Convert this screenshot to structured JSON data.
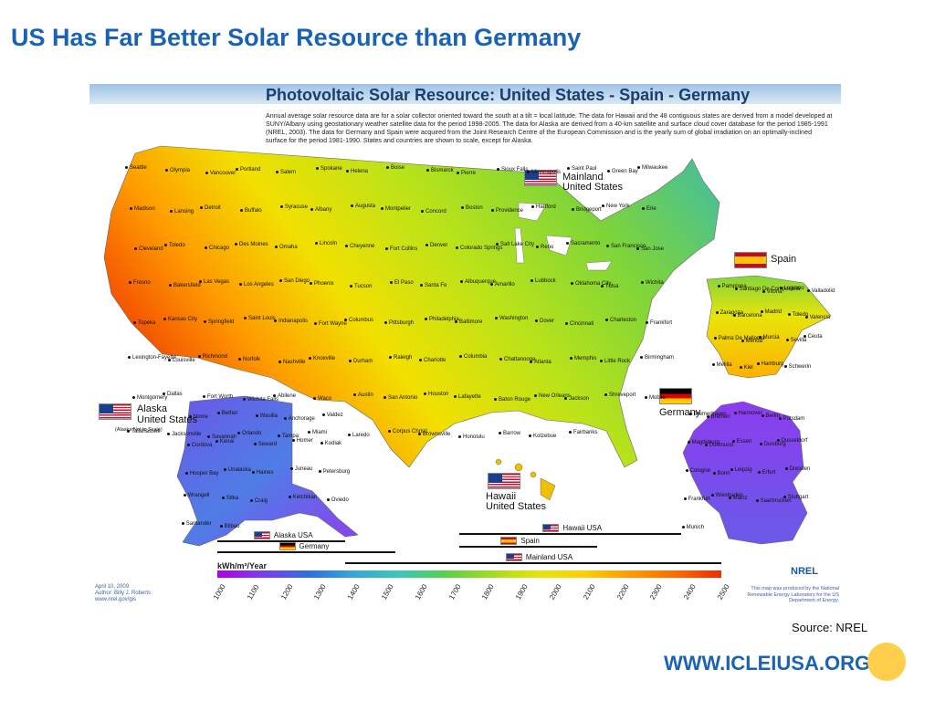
{
  "slide": {
    "title": "US Has Far Better Solar Resource than Germany",
    "source": "Source: NREL",
    "website": "WWW.ICLEIUSA.ORG"
  },
  "map": {
    "title": "Photovoltaic Solar Resource: United States - Spain - Germany",
    "description": "Annual average solar resource data are for a solar collector oriented toward the south at a tilt = local latitude. The data for Hawaii and the 48 contiguous states are derived from a model developed at SUNY/Albany using geostationary weather satellite data for the period 1998-2005. The data for Alaska are derived from a 40-km satellite and surface cloud cover database for the period 1985-1991 (NREL, 2003). The data for Germany and Spain were acquired from the Joint Research Centre of the European Commission and is the yearly sum of global irradiation on an optimally-inclined surface for the period 1981-1990. States and countries are shown to scale, except for Alaska.",
    "regions": {
      "mainland_line1": "Mainland",
      "mainland_line2": "United States",
      "alaska_line1": "Alaska",
      "alaska_line2": "United States",
      "alaska_note": "(Alaska Not to Scale)",
      "hawaii_line1": "Hawaii",
      "hawaii_line2": "United States",
      "spain": "Spain",
      "germany": "Germany"
    },
    "cities": [
      "Seattle",
      "Olympia",
      "Vancouver",
      "Portland",
      "Salem",
      "Spokane",
      "Helena",
      "Boise",
      "Bismarck",
      "Pierre",
      "Sioux Falls",
      "Minneapolis",
      "Saint Paul",
      "Green Bay",
      "Milwaukee",
      "Madison",
      "Lansing",
      "Detroit",
      "Buffalo",
      "Syracuse",
      "Albany",
      "Augusta",
      "Montpelier",
      "Concord",
      "Boston",
      "Providence",
      "Hartford",
      "Bridgeport",
      "New York",
      "Erie",
      "Cleveland",
      "Toledo",
      "Chicago",
      "Des Moines",
      "Omaha",
      "Lincoln",
      "Cheyenne",
      "Fort Collins",
      "Denver",
      "Colorado Springs",
      "Salt Lake City",
      "Reno",
      "Sacramento",
      "San Francisco",
      "San Jose",
      "Fresno",
      "Bakersfield",
      "Las Vegas",
      "Los Angeles",
      "San Diego",
      "Phoenix",
      "Tucson",
      "El Paso",
      "Santa Fe",
      "Albuquerque",
      "Amarillo",
      "Lubbock",
      "Oklahoma City",
      "Tulsa",
      "Wichita",
      "Topeka",
      "Kansas City",
      "Springfield",
      "Saint Louis",
      "Indianapolis",
      "Fort Wayne",
      "Columbus",
      "Pittsburgh",
      "Philadelphia",
      "Baltimore",
      "Washington",
      "Dover",
      "Cincinnati",
      "Charleston",
      "Frankfort",
      "Lexington-Fayette",
      "Louisville",
      "Richmond",
      "Norfolk",
      "Nashville",
      "Knoxville",
      "Durham",
      "Raleigh",
      "Charlotte",
      "Columbia",
      "Chattanooga",
      "Atlanta",
      "Memphis",
      "Little Rock",
      "Birmingham",
      "Montgomery",
      "Dallas",
      "Fort Worth",
      "Wichita Falls",
      "Abilene",
      "Waco",
      "Austin",
      "San Antonio",
      "Houston",
      "Lafayette",
      "Baton Rouge",
      "New Orleans",
      "Jackson",
      "Shreveport",
      "Mobile",
      "Tallahassee",
      "Jacksonville",
      "Savannah",
      "Orlando",
      "Tampa",
      "Miami",
      "Laredo",
      "Corpus Christi",
      "Brownsville",
      "Honolulu",
      "Barrow",
      "Kotzebue",
      "Fairbanks",
      "Nome",
      "Bethel",
      "Wasilla",
      "Anchorage",
      "Valdez",
      "Cordova",
      "Kenai",
      "Seward",
      "Homer",
      "Kodiak",
      "Hooper Bay",
      "Unalaska",
      "Haines",
      "Juneau",
      "Petersburg",
      "Wrangell",
      "Sitka",
      "Craig",
      "Ketchikan",
      "Oviedo",
      "Santander",
      "Bilbao",
      "Pamplona",
      "Santiago De Compostela",
      "Vitoria",
      "Logrono",
      "Valladolid",
      "Zaragoza",
      "Barcelona",
      "Madrid",
      "Toledo",
      "Valencia",
      "Palma De Mallorca",
      "Merida",
      "Murcia",
      "Sevilla",
      "Ceuta",
      "Melilla",
      "Kiel",
      "Hamburg",
      "Schwerin",
      "Bremerhaven",
      "Bremen",
      "Hannover",
      "Berlin",
      "Potsdam",
      "Magdeburg",
      "Dortmund",
      "Essen",
      "Duisburg",
      "Dusseldorf",
      "Cologne",
      "Bonn",
      "Leipzig",
      "Erfurt",
      "Dresden",
      "Frankfurt",
      "Wiesbaden",
      "Mainz",
      "Saarbrucken",
      "Stuttgart",
      "Munich"
    ],
    "legend": {
      "unit": "kWh/m²/Year",
      "ticks": [
        "1000",
        "1100",
        "1200",
        "1300",
        "1400",
        "1500",
        "1600",
        "1700",
        "1800",
        "1900",
        "2000",
        "2100",
        "2200",
        "2300",
        "2400",
        "2500"
      ],
      "ranges": [
        {
          "label": "Alaska USA",
          "flag": "us",
          "min": 1000,
          "max": 1380
        },
        {
          "label": "Germany",
          "flag": "de",
          "min": 1000,
          "max": 1530
        },
        {
          "label": "Hawaii USA",
          "flag": "us",
          "min": 1720,
          "max": 2380
        },
        {
          "label": "Spain",
          "flag": "es",
          "min": 1720,
          "max": 2130
        },
        {
          "label": "Mainland USA",
          "flag": "us",
          "min": 1380,
          "max": 2500
        }
      ]
    },
    "credit": {
      "date": "April 10, 2009",
      "author": "Author: Billy J. Roberts",
      "url": "www.nrel.gov/gis"
    },
    "producer": "This map was produced by the National Renewable Energy Laboratory for the US Department of Energy.",
    "logo": "NREL"
  },
  "colors": {
    "title": "#1a63b4",
    "high_resource": "#ef2a00",
    "low_resource": "#8a3ef0"
  }
}
